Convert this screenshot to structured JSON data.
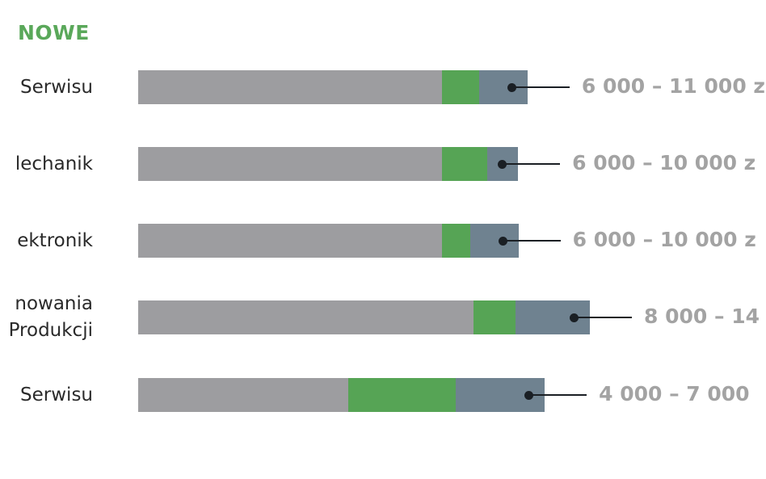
{
  "chart_data": {
    "type": "bar",
    "orientation": "horizontal",
    "stacked": true,
    "title": "NOWE",
    "categories": [
      "Serwisu",
      "lechanik",
      "ektronik",
      "nowania\nProdukcji",
      "Serwisu"
    ],
    "range_labels": [
      "6 000 – 11 000 z",
      "6 000 – 10 000 z",
      "6 000 – 10 000 z",
      "8 000 – 14",
      "4 000 – 7 000"
    ],
    "value_units": "percent of longest bar",
    "series": [
      {
        "values": [
          67.3,
          67.3,
          67.3,
          74.2,
          46.5
        ]
      },
      {
        "values": [
          8.2,
          10.0,
          6.3,
          9.3,
          23.8
        ]
      },
      {
        "values": [
          10.7,
          6.8,
          10.6,
          16.5,
          19.7
        ]
      }
    ],
    "colors": [
      "#9d9da0",
      "#56a455",
      "#6f8290"
    ],
    "title_color": "#5aa85a",
    "range_label_color": "#a3a3a3",
    "marker": "dot-with-leader-line"
  }
}
